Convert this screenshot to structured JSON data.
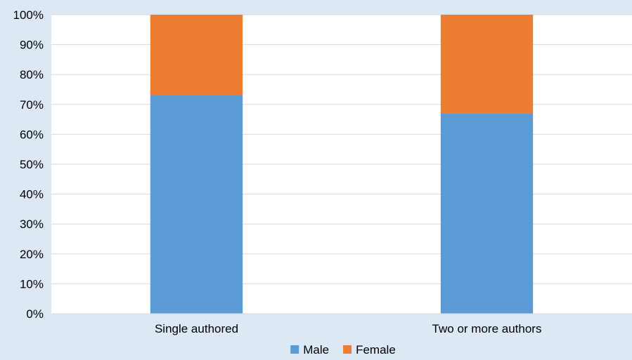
{
  "chart_data": {
    "type": "bar",
    "stacked": true,
    "percent_axis": true,
    "categories": [
      "Single authored",
      "Two or more authors"
    ],
    "series": [
      {
        "name": "Male",
        "values": [
          73,
          67
        ],
        "color": "#5b9bd5"
      },
      {
        "name": "Female",
        "values": [
          27,
          33
        ],
        "color": "#ed7d31"
      }
    ],
    "ylim": [
      0,
      100
    ],
    "yticks": [
      "0%",
      "10%",
      "20%",
      "30%",
      "40%",
      "50%",
      "60%",
      "70%",
      "80%",
      "90%",
      "100%"
    ],
    "grid": true,
    "legend_position": "bottom",
    "colors": {
      "background": "#dde8f5",
      "plot_area": "#ffffff",
      "grid": "#d9d9d9"
    }
  }
}
